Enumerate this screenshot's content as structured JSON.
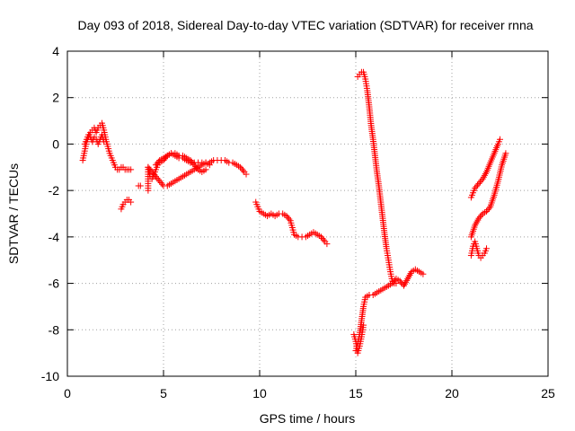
{
  "chart_data": {
    "type": "scatter",
    "title": "Day 093 of 2018, Sidereal Day-to-day VTEC variation (SDTVAR) for receiver rnna",
    "xlabel": "GPS time / hours",
    "ylabel": "SDTVAR / TECUs",
    "xlim": [
      0,
      25
    ],
    "ylim": [
      -10,
      4
    ],
    "xticks": [
      0,
      5,
      10,
      15,
      20,
      25
    ],
    "yticks": [
      -10,
      -8,
      -6,
      -4,
      -2,
      0,
      2,
      4
    ],
    "grid": true,
    "marker": "+",
    "color": "#ff0000",
    "series": [
      {
        "segments": [
          [
            [
              0.8,
              -0.7
            ],
            [
              0.9,
              -0.3
            ],
            [
              1.0,
              0.1
            ],
            [
              1.1,
              0.3
            ],
            [
              1.2,
              0.5
            ],
            [
              1.3,
              0.6
            ],
            [
              1.4,
              0.7
            ],
            [
              1.5,
              0.5
            ],
            [
              1.6,
              0.7
            ],
            [
              1.7,
              0.8
            ],
            [
              1.8,
              0.9
            ],
            [
              1.9,
              0.6
            ],
            [
              2.0,
              0.2
            ],
            [
              2.1,
              -0.1
            ],
            [
              2.2,
              -0.4
            ],
            [
              2.3,
              -0.6
            ],
            [
              2.4,
              -0.8
            ],
            [
              2.5,
              -1.0
            ],
            [
              2.6,
              -1.1
            ],
            [
              2.7,
              -1.1
            ],
            [
              2.8,
              -1.0
            ],
            [
              2.9,
              -1.0
            ],
            [
              3.0,
              -1.1
            ],
            [
              3.1,
              -1.1
            ],
            [
              3.2,
              -1.1
            ],
            [
              3.3,
              -1.1
            ]
          ],
          [
            [
              0.9,
              0.0
            ],
            [
              1.0,
              0.2
            ],
            [
              1.1,
              0.4
            ],
            [
              1.2,
              0.3
            ],
            [
              1.3,
              0.1
            ],
            [
              1.4,
              0.3
            ],
            [
              1.5,
              0.2
            ],
            [
              1.6,
              0.0
            ],
            [
              1.7,
              0.2
            ],
            [
              1.8,
              0.4
            ],
            [
              1.9,
              0.1
            ]
          ],
          [
            [
              2.8,
              -2.8
            ],
            [
              2.9,
              -2.6
            ],
            [
              3.0,
              -2.5
            ],
            [
              3.1,
              -2.4
            ],
            [
              3.2,
              -2.4
            ],
            [
              3.3,
              -2.5
            ]
          ],
          [
            [
              3.7,
              -1.8
            ],
            [
              3.8,
              -1.8
            ]
          ],
          [
            [
              4.2,
              -2.0
            ],
            [
              4.2,
              -1.5
            ],
            [
              4.2,
              -1.0
            ],
            [
              4.3,
              -1.4
            ],
            [
              4.4,
              -1.5
            ],
            [
              4.5,
              -1.3
            ],
            [
              4.6,
              -1.1
            ],
            [
              4.7,
              -0.9
            ],
            [
              4.8,
              -0.8
            ],
            [
              5.0,
              -0.7
            ],
            [
              5.2,
              -0.5
            ],
            [
              5.4,
              -0.4
            ],
            [
              5.6,
              -0.4
            ],
            [
              5.8,
              -0.5
            ],
            [
              6.0,
              -0.5
            ],
            [
              6.2,
              -0.6
            ],
            [
              6.4,
              -0.7
            ],
            [
              6.6,
              -0.9
            ],
            [
              6.8,
              -1.1
            ],
            [
              7.0,
              -1.2
            ],
            [
              7.2,
              -1.1
            ]
          ],
          [
            [
              4.2,
              -1.0
            ],
            [
              4.4,
              -1.2
            ],
            [
              4.6,
              -1.4
            ],
            [
              4.8,
              -1.6
            ],
            [
              5.0,
              -1.8
            ],
            [
              5.2,
              -1.8
            ],
            [
              5.4,
              -1.7
            ],
            [
              5.6,
              -1.6
            ],
            [
              5.8,
              -1.5
            ],
            [
              6.0,
              -1.4
            ],
            [
              6.2,
              -1.3
            ],
            [
              6.4,
              -1.2
            ],
            [
              6.6,
              -1.1
            ],
            [
              6.8,
              -1.0
            ],
            [
              7.0,
              -0.9
            ],
            [
              7.2,
              -0.8
            ],
            [
              7.4,
              -0.8
            ],
            [
              7.6,
              -0.7
            ],
            [
              7.8,
              -0.7
            ],
            [
              8.0,
              -0.7
            ],
            [
              8.2,
              -0.7
            ],
            [
              8.4,
              -0.8
            ],
            [
              8.6,
              -0.8
            ],
            [
              8.8,
              -0.9
            ],
            [
              9.0,
              -1.0
            ],
            [
              9.2,
              -1.2
            ],
            [
              9.3,
              -1.3
            ]
          ],
          [
            [
              4.6,
              -0.9
            ],
            [
              4.8,
              -0.7
            ],
            [
              5.0,
              -0.6
            ],
            [
              5.2,
              -0.5
            ],
            [
              5.4,
              -0.4
            ],
            [
              5.6,
              -0.5
            ],
            [
              5.8,
              -0.6
            ],
            [
              6.0,
              -0.6
            ],
            [
              6.2,
              -0.7
            ],
            [
              6.4,
              -0.8
            ],
            [
              6.6,
              -0.8
            ],
            [
              6.8,
              -0.8
            ],
            [
              7.0,
              -0.8
            ],
            [
              7.2,
              -0.8
            ],
            [
              7.4,
              -0.9
            ]
          ],
          [
            [
              9.8,
              -2.5
            ],
            [
              9.9,
              -2.7
            ],
            [
              10.0,
              -2.9
            ],
            [
              10.2,
              -3.0
            ],
            [
              10.4,
              -3.1
            ],
            [
              10.6,
              -3.0
            ],
            [
              10.8,
              -3.1
            ],
            [
              11.0,
              -3.0
            ],
            [
              11.2,
              -3.0
            ],
            [
              11.4,
              -3.1
            ],
            [
              11.6,
              -3.3
            ],
            [
              11.7,
              -3.6
            ],
            [
              11.8,
              -3.9
            ],
            [
              12.0,
              -4.0
            ],
            [
              12.2,
              -4.0
            ],
            [
              12.4,
              -4.0
            ],
            [
              12.6,
              -3.9
            ],
            [
              12.8,
              -3.8
            ],
            [
              13.0,
              -3.9
            ],
            [
              13.2,
              -4.0
            ],
            [
              13.4,
              -4.2
            ],
            [
              13.5,
              -4.3
            ]
          ],
          [
            [
              15.0,
              -8.9
            ],
            [
              15.1,
              -8.6
            ],
            [
              15.2,
              -8.2
            ],
            [
              15.3,
              -7.6
            ],
            [
              15.4,
              -7.0
            ],
            [
              15.5,
              -6.6
            ],
            [
              15.7,
              -6.5
            ],
            [
              15.9,
              -6.5
            ],
            [
              16.1,
              -6.4
            ],
            [
              16.3,
              -6.3
            ],
            [
              16.5,
              -6.2
            ],
            [
              16.7,
              -6.1
            ],
            [
              16.9,
              -6.0
            ],
            [
              17.1,
              -5.8
            ],
            [
              17.3,
              -5.9
            ],
            [
              17.5,
              -6.1
            ],
            [
              17.7,
              -5.8
            ],
            [
              17.9,
              -5.5
            ],
            [
              18.1,
              -5.4
            ],
            [
              18.3,
              -5.5
            ],
            [
              18.5,
              -5.6
            ]
          ],
          [
            [
              14.9,
              -8.2
            ],
            [
              15.0,
              -8.5
            ],
            [
              15.1,
              -9.0
            ],
            [
              15.2,
              -8.7
            ],
            [
              15.3,
              -8.3
            ],
            [
              15.4,
              -7.8
            ]
          ],
          [
            [
              15.1,
              2.9
            ],
            [
              15.2,
              3.0
            ],
            [
              15.3,
              3.1
            ],
            [
              15.4,
              3.1
            ],
            [
              15.5,
              2.8
            ],
            [
              15.6,
              2.3
            ],
            [
              15.7,
              1.6
            ],
            [
              15.8,
              0.8
            ],
            [
              15.9,
              0.2
            ],
            [
              16.0,
              -0.5
            ],
            [
              16.1,
              -1.2
            ],
            [
              16.2,
              -1.8
            ],
            [
              16.3,
              -2.5
            ],
            [
              16.4,
              -3.2
            ],
            [
              16.5,
              -3.9
            ],
            [
              16.6,
              -4.5
            ],
            [
              16.7,
              -5.0
            ],
            [
              16.8,
              -5.5
            ],
            [
              16.9,
              -5.9
            ],
            [
              17.0,
              -6.0
            ],
            [
              17.1,
              -6.0
            ]
          ],
          [
            [
              21.0,
              -4.8
            ],
            [
              21.1,
              -4.4
            ],
            [
              21.2,
              -4.2
            ],
            [
              21.3,
              -4.5
            ],
            [
              21.4,
              -4.8
            ],
            [
              21.5,
              -4.9
            ],
            [
              21.6,
              -4.8
            ],
            [
              21.7,
              -4.7
            ],
            [
              21.8,
              -4.5
            ]
          ],
          [
            [
              21.0,
              -2.3
            ],
            [
              21.1,
              -2.1
            ],
            [
              21.2,
              -1.9
            ],
            [
              21.4,
              -1.7
            ],
            [
              21.6,
              -1.5
            ],
            [
              21.8,
              -1.2
            ],
            [
              22.0,
              -0.8
            ],
            [
              22.2,
              -0.4
            ],
            [
              22.4,
              0.0
            ],
            [
              22.5,
              0.2
            ]
          ],
          [
            [
              21.0,
              -4.0
            ],
            [
              21.2,
              -3.5
            ],
            [
              21.4,
              -3.2
            ],
            [
              21.6,
              -3.0
            ],
            [
              21.8,
              -2.9
            ],
            [
              22.0,
              -2.7
            ],
            [
              22.2,
              -2.2
            ],
            [
              22.4,
              -1.6
            ],
            [
              22.6,
              -0.9
            ],
            [
              22.8,
              -0.4
            ]
          ]
        ]
      }
    ]
  }
}
